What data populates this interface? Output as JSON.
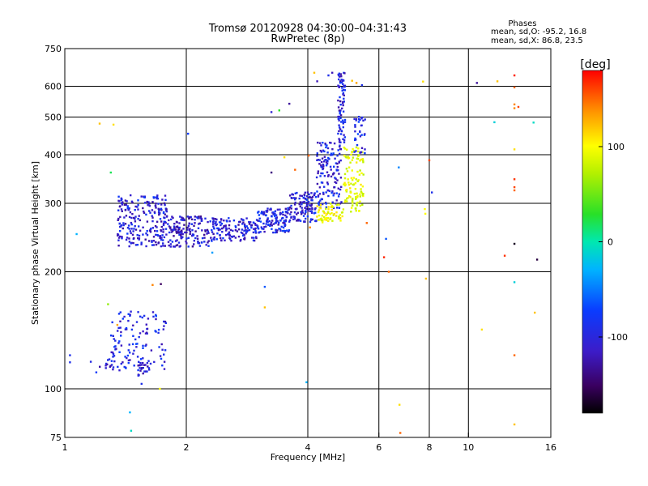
{
  "chart_data": {
    "type": "scatter",
    "title": "Tromsø 20120928 04:30:00–04:31:43",
    "subtitle": "RwPretec (8p)",
    "xlabel": "Frequency [MHz]",
    "ylabel": "Stationary phase Virtual Height [km]",
    "x_scale": "log",
    "y_scale": "log",
    "xlim": [
      1,
      16
    ],
    "ylim": [
      75,
      750
    ],
    "x_ticks": [
      1,
      2,
      4,
      6,
      8,
      10,
      16
    ],
    "x_tick_labels": [
      "1",
      "2",
      "4",
      "6",
      "8",
      "10",
      "16"
    ],
    "y_ticks": [
      75,
      100,
      200,
      300,
      400,
      500,
      600,
      750
    ],
    "y_tick_labels": [
      "75",
      "100",
      "200",
      "300",
      "400",
      "500",
      "600",
      "750"
    ],
    "grid": true,
    "grid_x": [
      2,
      4,
      6,
      8,
      10
    ],
    "grid_y": [
      100,
      200,
      300,
      400,
      500,
      600
    ],
    "phase_info": {
      "heading": "Phases",
      "line1": "mean, sd,O: -95.2, 16.8",
      "line2": "mean, sd,X:  86.8, 23.5"
    },
    "colorbar": {
      "label": "[deg]",
      "range": [
        -180,
        180
      ],
      "ticks": [
        100,
        0,
        -100
      ],
      "tick_labels": [
        "100",
        "0",
        "-100"
      ],
      "colormap": "rainbow (black→purple→blue→cyan→green→yellow→orange→red)"
    },
    "traces": [
      {
        "kind": "band",
        "x_from": 1.35,
        "x_to": 1.8,
        "h_low": 232,
        "h_high": 315,
        "phase": -110,
        "count": 230
      },
      {
        "kind": "band",
        "x_from": 1.8,
        "x_to": 2.3,
        "h_low": 232,
        "h_high": 278,
        "phase": -115,
        "count": 150
      },
      {
        "kind": "band",
        "x_from": 2.3,
        "x_to": 3.0,
        "h_low": 240,
        "h_high": 275,
        "phase": -110,
        "count": 140
      },
      {
        "kind": "band",
        "x_from": 3.0,
        "x_to": 3.6,
        "h_low": 252,
        "h_high": 292,
        "phase": -105,
        "count": 130
      },
      {
        "kind": "band",
        "x_from": 3.6,
        "x_to": 4.2,
        "h_low": 268,
        "h_high": 320,
        "phase": -108,
        "count": 120
      },
      {
        "kind": "band",
        "x_from": 4.2,
        "x_to": 4.85,
        "h_low": 290,
        "h_high": 430,
        "phase": -105,
        "count": 140
      },
      {
        "kind": "band",
        "x_from": 4.75,
        "x_to": 4.95,
        "h_low": 430,
        "h_high": 650,
        "phase": -110,
        "count": 80
      },
      {
        "kind": "band",
        "x_from": 4.2,
        "x_to": 4.9,
        "h_low": 270,
        "h_high": 300,
        "phase": 95,
        "count": 60
      },
      {
        "kind": "band",
        "x_from": 4.9,
        "x_to": 5.5,
        "h_low": 285,
        "h_high": 420,
        "phase": 90,
        "count": 110
      },
      {
        "kind": "band",
        "x_from": 5.2,
        "x_to": 5.55,
        "h_low": 400,
        "h_high": 520,
        "phase": -100,
        "count": 35
      },
      {
        "kind": "band",
        "x_from": 1.15,
        "x_to": 1.45,
        "h_low": 110,
        "h_high": 125,
        "phase": -110,
        "count": 20
      },
      {
        "kind": "band",
        "x_from": 1.3,
        "x_to": 1.78,
        "h_low": 112,
        "h_high": 158,
        "phase": -105,
        "count": 110
      },
      {
        "kind": "band",
        "x_from": 1.52,
        "x_to": 1.62,
        "h_low": 108,
        "h_high": 118,
        "phase": -110,
        "count": 25
      }
    ],
    "points": [
      [
        1.03,
        117,
        -100
      ],
      [
        1.03,
        122,
        -100
      ],
      [
        1.07,
        250,
        -40
      ],
      [
        1.22,
        481,
        120
      ],
      [
        1.28,
        165,
        60
      ],
      [
        1.3,
        360,
        20
      ],
      [
        1.32,
        478,
        110
      ],
      [
        1.35,
        146,
        130
      ],
      [
        1.45,
        87,
        -40
      ],
      [
        1.46,
        78,
        -10
      ],
      [
        1.55,
        103,
        -100
      ],
      [
        1.65,
        185,
        140
      ],
      [
        1.72,
        100,
        100
      ],
      [
        1.73,
        186,
        -150
      ],
      [
        2.02,
        453,
        -90
      ],
      [
        2.32,
        224,
        -50
      ],
      [
        3.13,
        183,
        -80
      ],
      [
        3.13,
        162,
        120
      ],
      [
        3.25,
        515,
        -110
      ],
      [
        3.25,
        360,
        -140
      ],
      [
        3.4,
        520,
        30
      ],
      [
        3.5,
        394,
        110
      ],
      [
        3.6,
        541,
        -130
      ],
      [
        3.72,
        366,
        150
      ],
      [
        3.97,
        104,
        -40
      ],
      [
        4.02,
        398,
        150
      ],
      [
        4.05,
        260,
        140
      ],
      [
        4.15,
        650,
        120
      ],
      [
        4.22,
        618,
        -120
      ],
      [
        4.5,
        640,
        -100
      ],
      [
        4.6,
        650,
        -120
      ],
      [
        5.15,
        620,
        120
      ],
      [
        5.28,
        612,
        130
      ],
      [
        5.45,
        604,
        -100
      ],
      [
        5.6,
        267,
        150
      ],
      [
        6.18,
        218,
        170
      ],
      [
        6.25,
        243,
        -80
      ],
      [
        6.35,
        200,
        150
      ],
      [
        6.72,
        371,
        -60
      ],
      [
        6.75,
        91,
        110
      ],
      [
        6.78,
        77,
        150
      ],
      [
        7.72,
        617,
        110
      ],
      [
        7.8,
        290,
        100
      ],
      [
        7.82,
        282,
        100
      ],
      [
        7.85,
        192,
        120
      ],
      [
        8.0,
        387,
        160
      ],
      [
        8.12,
        320,
        -100
      ],
      [
        10.5,
        612,
        -130
      ],
      [
        10.8,
        142,
        110
      ],
      [
        11.6,
        485,
        -20
      ],
      [
        11.8,
        618,
        120
      ],
      [
        12.3,
        220,
        165
      ],
      [
        13.0,
        640,
        170
      ],
      [
        13.0,
        596,
        150
      ],
      [
        13.0,
        539,
        140
      ],
      [
        13.0,
        527,
        140
      ],
      [
        13.0,
        413,
        110
      ],
      [
        13.0,
        346,
        165
      ],
      [
        13.0,
        330,
        160
      ],
      [
        13.0,
        324,
        150
      ],
      [
        13.0,
        236,
        -170
      ],
      [
        13.0,
        188,
        -20
      ],
      [
        13.0,
        122,
        150
      ],
      [
        13.0,
        81,
        120
      ],
      [
        13.3,
        531,
        160
      ],
      [
        14.5,
        484,
        -10
      ],
      [
        14.6,
        157,
        120
      ],
      [
        14.8,
        215,
        -160
      ],
      [
        4.25,
        272,
        90
      ],
      [
        4.35,
        268,
        95
      ],
      [
        4.45,
        275,
        100
      ]
    ]
  }
}
